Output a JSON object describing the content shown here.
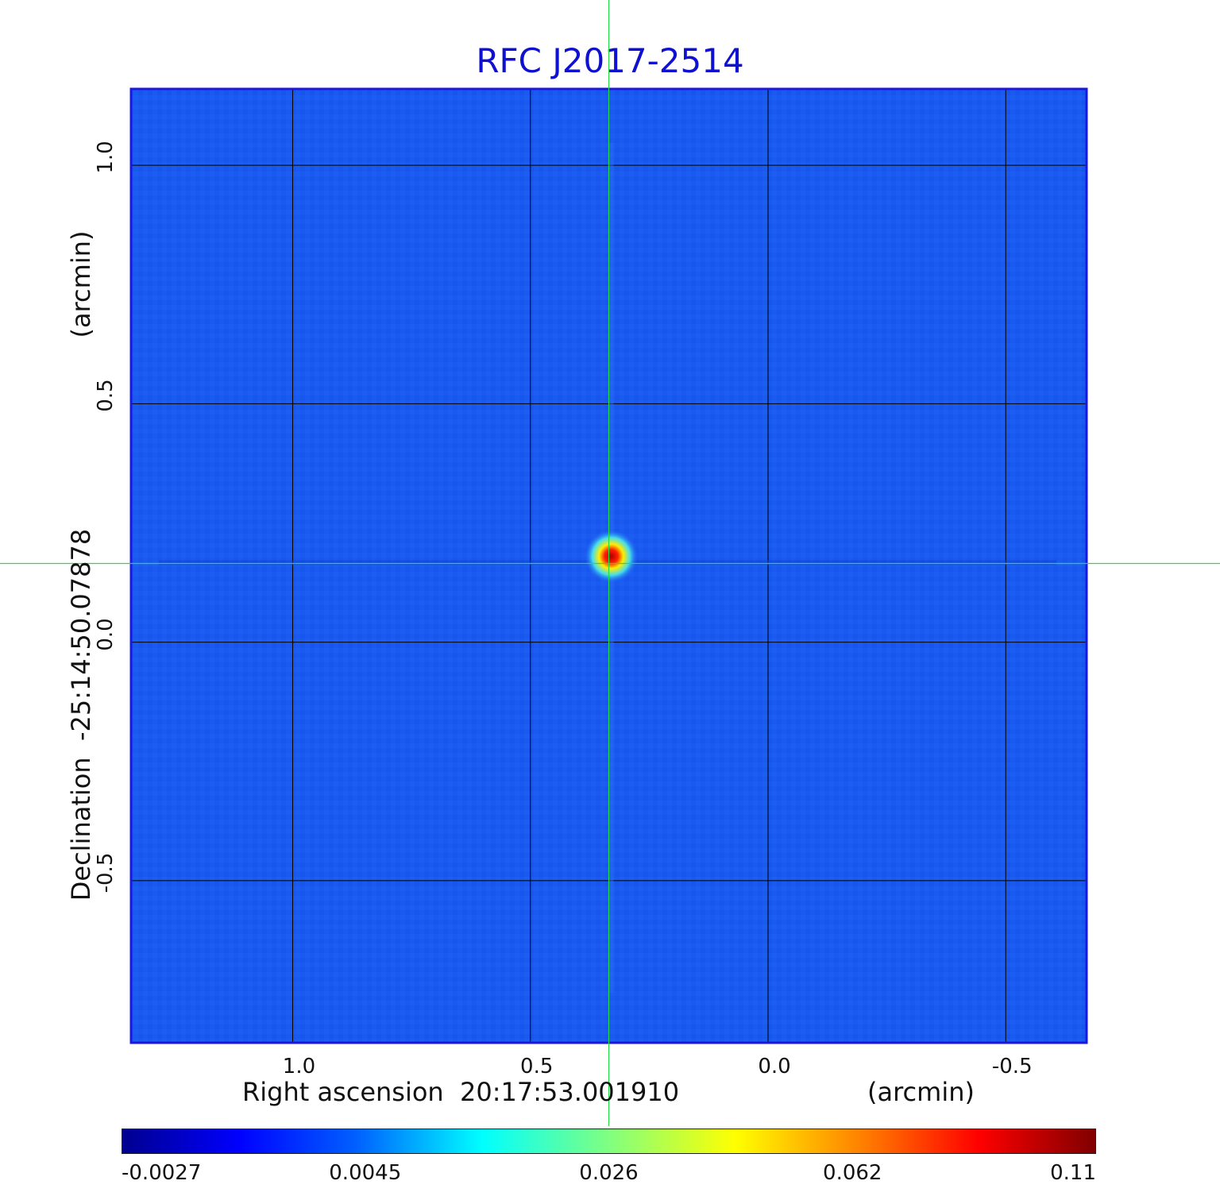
{
  "chart_data": {
    "type": "heatmap",
    "title": "RFC J2017-2514",
    "xlabel": "Right ascension  20:17:53.001910",
    "xunit": "(arcmin)",
    "ylabel": "Declination  -25:14:50.07878",
    "yunit": "(arcmin)",
    "x_ticks": [
      {
        "label": "1.0",
        "value": 1.0
      },
      {
        "label": "0.5",
        "value": 0.5
      },
      {
        "label": "0.0",
        "value": 0.0
      },
      {
        "label": "-0.5",
        "value": -0.5
      }
    ],
    "y_ticks": [
      {
        "label": "1.0",
        "value": 1.0
      },
      {
        "label": "0.5",
        "value": 0.5
      },
      {
        "label": "0.0",
        "value": 0.0
      },
      {
        "label": "-0.5",
        "value": -0.5
      }
    ],
    "xlim": [
      1.34,
      -0.67
    ],
    "ylim": [
      -0.84,
      1.16
    ],
    "grid": true,
    "source_peak": {
      "x": 0.33,
      "y": 0.18,
      "value": 0.11
    },
    "crosshair": {
      "x": 0.335,
      "y": 0.165
    },
    "colorbar": {
      "ticks": [
        "-0.0027",
        "0.0045",
        "0.026",
        "0.062",
        "0.11"
      ],
      "colormap": "jet",
      "min": -0.0027,
      "max": 0.11
    }
  },
  "colors": {
    "background_map": "#1a5af0",
    "title": "#1010d0",
    "crosshair": "#22dd44",
    "grid": "#000000"
  }
}
